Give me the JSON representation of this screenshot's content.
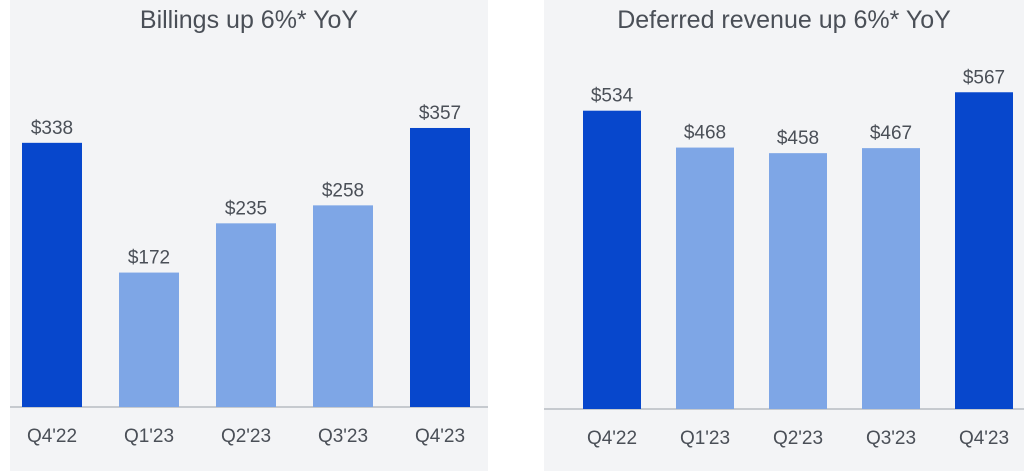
{
  "chart_data": [
    {
      "type": "bar",
      "title": "Billings up 6%* YoY",
      "categories": [
        "Q4'22",
        "Q1'23",
        "Q2'23",
        "Q3'23",
        "Q4'23"
      ],
      "values": [
        338,
        172,
        235,
        258,
        357
      ],
      "value_labels": [
        "$338",
        "$172",
        "$235",
        "$258",
        "$357"
      ],
      "highlight": [
        true,
        false,
        false,
        false,
        true
      ],
      "ylim": [
        0,
        380
      ],
      "xlabel": "",
      "ylabel": "",
      "grid": false,
      "colors": {
        "highlight": "#0747cc",
        "normal": "#7ea6e6"
      }
    },
    {
      "type": "bar",
      "title": "Deferred revenue up 6%* YoY",
      "categories": [
        "Q4'22",
        "Q1'23",
        "Q2'23",
        "Q3'23",
        "Q4'23"
      ],
      "values": [
        534,
        468,
        458,
        467,
        567
      ],
      "value_labels": [
        "$534",
        "$468",
        "$458",
        "$467",
        "$567"
      ],
      "highlight": [
        true,
        false,
        false,
        false,
        true
      ],
      "ylim": [
        0,
        580
      ],
      "xlabel": "",
      "ylabel": "",
      "grid": false,
      "colors": {
        "highlight": "#0747cc",
        "normal": "#7ea6e6"
      }
    }
  ]
}
